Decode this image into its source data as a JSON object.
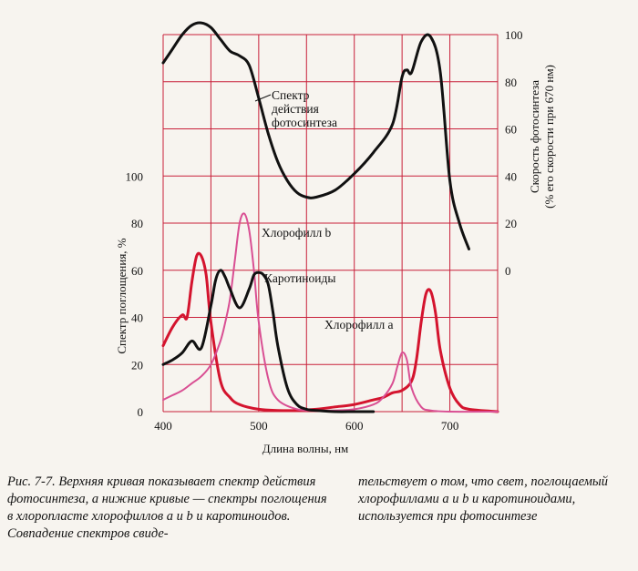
{
  "chart_data": {
    "type": "line",
    "xlabel": "Длина волны, нм",
    "ylabel_left": "Спектр поглощения, %",
    "ylabel_right_1": "Скорость фотосинтеза",
    "ylabel_right_2": "(% его скорости при 670 нм)",
    "xlim": [
      400,
      750
    ],
    "ylim_left": [
      0,
      160
    ],
    "x_ticks": [
      400,
      500,
      600,
      700
    ],
    "x_tick_labels": [
      "400",
      "500",
      "600",
      "700"
    ],
    "y_left_ticks": [
      0,
      20,
      40,
      60,
      80,
      100
    ],
    "y_left_tick_labels": [
      "0",
      "20",
      "40",
      "60",
      "80",
      "100"
    ],
    "y_right_ticks": [
      0,
      20,
      40,
      60,
      80,
      100
    ],
    "y_right_tick_labels": [
      "0",
      "20",
      "40",
      "60",
      "80",
      "100"
    ],
    "y_right_axis_range": [
      0,
      100
    ],
    "y_right_zero_at_left_value": 60,
    "grid": true,
    "series": [
      {
        "name": "Спектр действия фотосинтеза",
        "axis": "right",
        "color": "#111111",
        "x": [
          400,
          410,
          420,
          430,
          440,
          450,
          460,
          470,
          480,
          490,
          500,
          510,
          520,
          530,
          540,
          550,
          560,
          580,
          600,
          620,
          640,
          650,
          655,
          660,
          670,
          680,
          690,
          700,
          710,
          720
        ],
        "y": [
          88,
          94,
          100,
          104,
          105,
          103,
          98,
          93,
          91,
          87,
          73,
          58,
          46,
          38,
          33,
          31,
          31,
          34,
          41,
          50,
          62,
          82,
          85,
          84,
          97,
          99,
          84,
          38,
          20,
          9
        ]
      },
      {
        "name": "Хлорофилл a",
        "axis": "left",
        "color": "#d4142e",
        "x": [
          400,
          410,
          420,
          425,
          430,
          435,
          440,
          445,
          450,
          460,
          470,
          480,
          500,
          520,
          540,
          560,
          580,
          600,
          620,
          630,
          640,
          650,
          660,
          665,
          670,
          675,
          680,
          685,
          690,
          700,
          710,
          720,
          750
        ],
        "y": [
          28,
          36,
          41,
          40,
          55,
          66,
          66,
          58,
          38,
          13,
          6,
          3,
          1,
          0.5,
          0.5,
          1,
          2,
          3,
          5,
          6,
          8,
          9,
          13,
          22,
          38,
          50,
          51,
          42,
          26,
          10,
          3,
          1,
          0
        ]
      },
      {
        "name": "Хлорофилл b",
        "axis": "left",
        "color": "#d94f93",
        "x": [
          400,
          410,
          420,
          430,
          440,
          450,
          460,
          465,
          470,
          475,
          480,
          485,
          490,
          495,
          500,
          510,
          520,
          540,
          560,
          580,
          600,
          620,
          630,
          640,
          645,
          650,
          655,
          660,
          670,
          680,
          700,
          750
        ],
        "y": [
          5,
          7,
          9,
          12,
          15,
          20,
          30,
          38,
          48,
          64,
          80,
          84,
          77,
          60,
          38,
          14,
          5,
          1,
          0.5,
          0.5,
          1,
          3,
          6,
          12,
          19,
          25,
          22,
          10,
          2,
          0.5,
          0,
          0
        ]
      },
      {
        "name": "Каротиноиды",
        "axis": "left",
        "color": "#111111",
        "x": [
          400,
          410,
          420,
          430,
          440,
          450,
          455,
          460,
          465,
          470,
          480,
          490,
          495,
          500,
          505,
          510,
          515,
          520,
          530,
          540,
          550,
          560,
          580,
          600,
          620
        ],
        "y": [
          20,
          22,
          25,
          30,
          27,
          45,
          56,
          60,
          57,
          52,
          44,
          52,
          58,
          59,
          58,
          54,
          42,
          28,
          10,
          3,
          1,
          0.5,
          0,
          0,
          0
        ]
      }
    ],
    "annotations": [
      {
        "text_1": "Спектр",
        "text_2": "действия",
        "text_3": "фотосинтеза"
      },
      {
        "text": "Хлорофилл b"
      },
      {
        "text": "Каротиноиды"
      },
      {
        "text": "Хлорофилл a"
      }
    ]
  },
  "caption_left": "Рис. 7-7. Верхняя кривая показывает спектр действия фотосинтеза, а нижние кривые — спектры поглощения в хлоропласте хлорофиллов a и b и каротиноидов. Совпадение спектров свиде-",
  "caption_right": "тельствует о том, что свет, поглощаемый хлорофиллами a и b и каротиноидами, используется при фотосинтезе"
}
